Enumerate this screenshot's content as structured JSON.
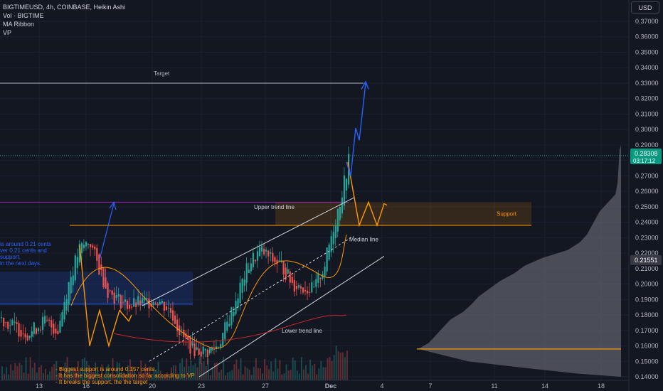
{
  "legend": {
    "symbol_line": "BIGTIMEUSD, 4h, COINBASE, Heikin Ashi",
    "vol_line": "Vol · BIGTIME",
    "ribbon_line": "MA Ribbon",
    "vp_line": "VP"
  },
  "price_axis": {
    "currency": "USD",
    "ticks": [
      "0.37000",
      "0.36000",
      "0.35000",
      "0.34000",
      "0.33000",
      "0.32000",
      "0.31000",
      "0.30000",
      "0.29000",
      "0.28000",
      "0.27000",
      "0.26000",
      "0.25000",
      "0.24000",
      "0.23000",
      "0.22000",
      "0.21000",
      "0.20000",
      "0.19000",
      "0.18000",
      "0.17000",
      "0.16000",
      "0.15000",
      "0.14000"
    ],
    "current_price": "0.28308",
    "countdown": "03:17:12",
    "crosshair_price": "0.21551"
  },
  "time_axis": {
    "ticks": [
      "13",
      "16",
      "20",
      "23",
      "27",
      "Dec",
      "4",
      "7",
      "11",
      "14",
      "18"
    ]
  },
  "annotations": {
    "target": "Target",
    "upper_trend": "Upper trend line",
    "median": "Median line",
    "lower_trend": "Lower trend line",
    "support": "Support",
    "note_blue": "is around 0.21 cents\nver 0.21 cents and\nsupport,\nin the next days.",
    "note_orange": "- Biggest support is around 0.157 cents.\n- It has the biggest consolidation so far according to VP\n- It breaks the support, the the target"
  },
  "colors": {
    "background": "#131722",
    "up": "#26a69a",
    "down": "#ef5350",
    "accent_orange": "#ff9800",
    "accent_blue": "#2962ff",
    "price_badge": "#089981"
  },
  "chart_data": {
    "type": "candlestick",
    "title": "BIGTIMEUSD, 4h, COINBASE, Heikin Ashi",
    "ylim": [
      0.14,
      0.37
    ],
    "last_price": 0.28308,
    "levels": {
      "target": 0.33,
      "support_top": 0.253,
      "support_bottom": 0.238,
      "vp_poc": 0.158
    },
    "x_labels": [
      "13",
      "16",
      "20",
      "23",
      "27",
      "Dec",
      "4",
      "7",
      "11",
      "14",
      "18"
    ]
  }
}
